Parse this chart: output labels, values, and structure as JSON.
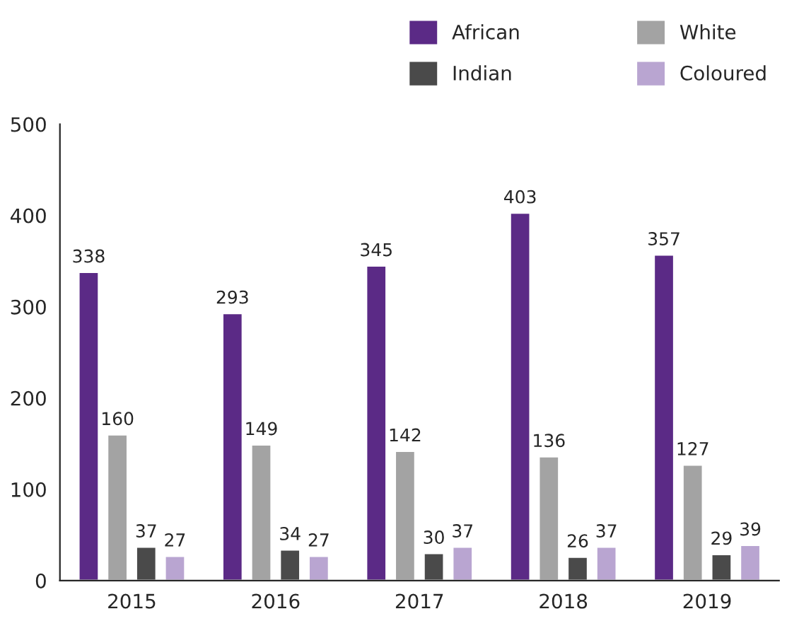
{
  "chart_data": {
    "type": "bar",
    "categories": [
      "2015",
      "2016",
      "2017",
      "2018",
      "2019"
    ],
    "series": [
      {
        "name": "African",
        "color": "#5b2a86",
        "values": [
          338,
          293,
          345,
          403,
          357
        ]
      },
      {
        "name": "White",
        "color": "#a3a3a3",
        "values": [
          160,
          149,
          142,
          136,
          127
        ]
      },
      {
        "name": "Indian",
        "color": "#4a4a4a",
        "values": [
          37,
          34,
          30,
          26,
          29
        ]
      },
      {
        "name": "Coloured",
        "color": "#b9a5d1",
        "values": [
          27,
          27,
          37,
          37,
          39
        ]
      }
    ],
    "ylim": [
      0,
      500
    ],
    "yticks": [
      0,
      100,
      200,
      300,
      400,
      500
    ],
    "data_labels": true,
    "legend": "top",
    "grid": false
  }
}
